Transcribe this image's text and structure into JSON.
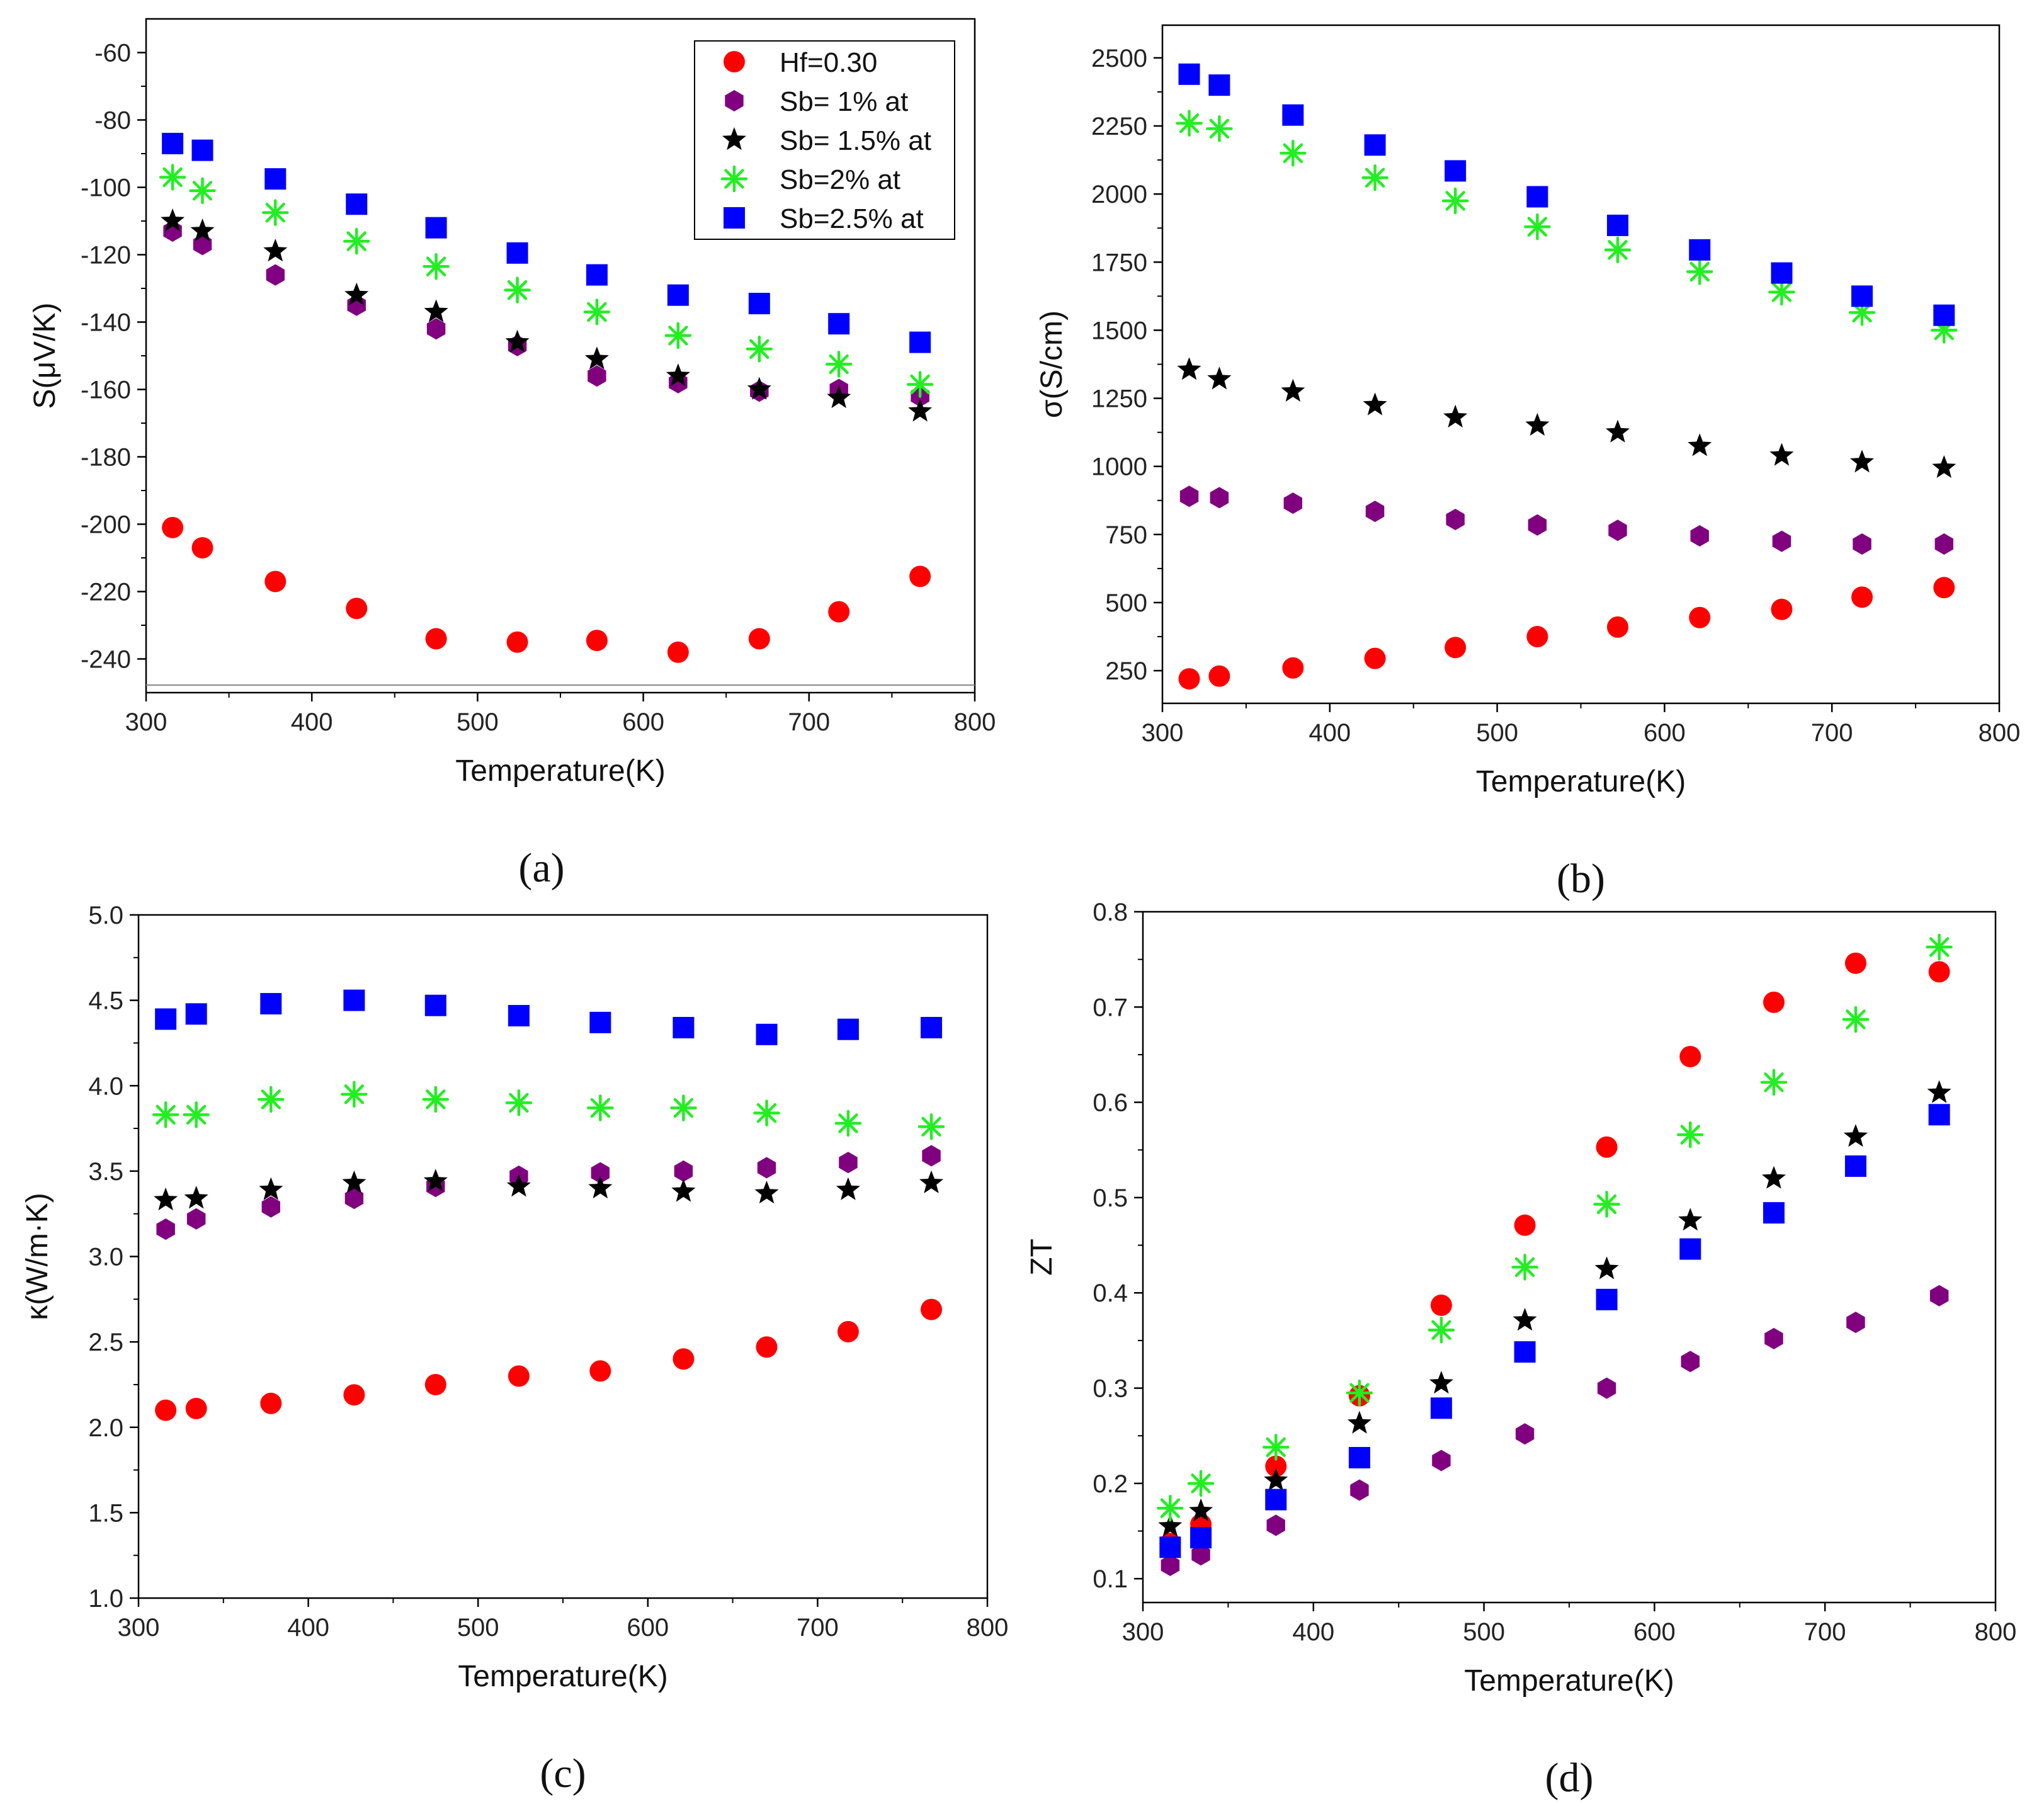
{
  "chart_data": [
    {
      "type": "scatter",
      "panel_label": "(a)",
      "xlabel": "Temperature(K)",
      "ylabel": "S(μV/K)",
      "xlim": [
        300,
        800
      ],
      "ylim": [
        -250,
        -50
      ],
      "xticks": [
        300,
        400,
        500,
        600,
        700,
        800
      ],
      "yticks": [
        -240,
        -220,
        -200,
        -180,
        -160,
        -140,
        -120,
        -100,
        -80,
        -60
      ],
      "legend_position": "top-right",
      "x": [
        316,
        334,
        378,
        427,
        475,
        524,
        572,
        621,
        670,
        718,
        767
      ],
      "series": [
        {
          "name": "Hf=0.30",
          "marker": "circle",
          "color": "#ff0000",
          "values": [
            -201,
            -207,
            -217,
            -225,
            -234,
            -235,
            -234.5,
            -238,
            -234,
            -226,
            -215.5
          ]
        },
        {
          "name": "Sb= 1% at",
          "marker": "hexagon",
          "color": "#800080",
          "values": [
            -113,
            -117,
            -126,
            -135,
            -142,
            -147,
            -156,
            -158,
            -160.5,
            -160,
            -162
          ]
        },
        {
          "name": "Sb= 1.5% at",
          "marker": "star",
          "color": "#000000",
          "values": [
            -110,
            -113,
            -119,
            -132,
            -137,
            -146,
            -151,
            -156,
            -160,
            -162.5,
            -166.5
          ]
        },
        {
          "name": "Sb=2% at",
          "marker": "asterisk",
          "color": "#22ee22",
          "values": [
            -97,
            -101,
            -107.5,
            -116,
            -123.5,
            -130.5,
            -137,
            -144,
            -148,
            -152.5,
            -158.5
          ]
        },
        {
          "name": "Sb=2.5% at",
          "marker": "square",
          "color": "#0000ff",
          "values": [
            -87,
            -89,
            -97.5,
            -105,
            -112,
            -119.5,
            -126,
            -132,
            -134.5,
            -140.5,
            -146
          ]
        }
      ]
    },
    {
      "type": "scatter",
      "panel_label": "(b)",
      "xlabel": "Temperature(K)",
      "ylabel": "σ(S/cm)",
      "xlim": [
        300,
        800
      ],
      "ylim": [
        130,
        2620
      ],
      "xticks": [
        300,
        400,
        500,
        600,
        700,
        800
      ],
      "yticks": [
        250,
        500,
        750,
        1000,
        1250,
        1500,
        1750,
        2000,
        2250,
        2500
      ],
      "x": [
        316,
        334,
        378,
        427,
        475,
        524,
        572,
        621,
        670,
        718,
        767
      ],
      "series": [
        {
          "name": "Hf=0.30",
          "marker": "circle",
          "color": "#ff0000",
          "values": [
            220,
            230,
            260,
            295,
            335,
            375,
            410,
            445,
            475,
            520,
            555
          ]
        },
        {
          "name": "Sb= 1% at",
          "marker": "hexagon",
          "color": "#800080",
          "values": [
            890,
            885,
            865,
            835,
            805,
            785,
            765,
            745,
            725,
            715,
            715
          ]
        },
        {
          "name": "Sb= 1.5% at",
          "marker": "star",
          "color": "#000000",
          "values": [
            1355,
            1320,
            1275,
            1225,
            1180,
            1150,
            1125,
            1075,
            1040,
            1015,
            995
          ]
        },
        {
          "name": "Sb=2% at",
          "marker": "asterisk",
          "color": "#22ee22",
          "values": [
            2260,
            2240,
            2150,
            2060,
            1975,
            1880,
            1795,
            1715,
            1640,
            1565,
            1500
          ]
        },
        {
          "name": "Sb=2.5% at",
          "marker": "square",
          "color": "#0000ff",
          "values": [
            2440,
            2400,
            2290,
            2180,
            2085,
            1990,
            1885,
            1795,
            1710,
            1625,
            1555
          ]
        }
      ]
    },
    {
      "type": "scatter",
      "panel_label": "(c)",
      "xlabel": "Temperature(K)",
      "ylabel": "κ(W/m·K)",
      "xlim": [
        300,
        800
      ],
      "ylim": [
        1.0,
        5.0
      ],
      "xticks": [
        300,
        400,
        500,
        600,
        700,
        800
      ],
      "yticks": [
        1.0,
        1.5,
        2.0,
        2.5,
        3.0,
        3.5,
        4.0,
        4.5,
        5.0
      ],
      "ytick_decimals": 1,
      "x": [
        316,
        334,
        378,
        427,
        475,
        524,
        572,
        621,
        670,
        718,
        767
      ],
      "series": [
        {
          "name": "Hf=0.30",
          "marker": "circle",
          "color": "#ff0000",
          "values": [
            2.1,
            2.11,
            2.14,
            2.19,
            2.25,
            2.3,
            2.33,
            2.4,
            2.47,
            2.56,
            2.69
          ]
        },
        {
          "name": "Sb= 1% at",
          "marker": "hexagon",
          "color": "#800080",
          "values": [
            3.16,
            3.22,
            3.29,
            3.34,
            3.41,
            3.47,
            3.49,
            3.5,
            3.52,
            3.55,
            3.59
          ]
        },
        {
          "name": "Sb= 1.5% at",
          "marker": "star",
          "color": "#000000",
          "values": [
            3.33,
            3.34,
            3.39,
            3.43,
            3.44,
            3.41,
            3.4,
            3.38,
            3.37,
            3.39,
            3.43
          ]
        },
        {
          "name": "Sb=2% at",
          "marker": "asterisk",
          "color": "#22ee22",
          "values": [
            3.83,
            3.83,
            3.92,
            3.95,
            3.92,
            3.9,
            3.87,
            3.87,
            3.84,
            3.78,
            3.76
          ]
        },
        {
          "name": "Sb=2.5% at",
          "marker": "square",
          "color": "#0000ff",
          "values": [
            4.39,
            4.42,
            4.48,
            4.5,
            4.47,
            4.41,
            4.37,
            4.34,
            4.3,
            4.33,
            4.34
          ]
        }
      ]
    },
    {
      "type": "scatter",
      "panel_label": "(d)",
      "xlabel": "Temperature(K)",
      "ylabel": "ZT",
      "xlim": [
        300,
        800
      ],
      "ylim": [
        0.075,
        0.8
      ],
      "xticks": [
        300,
        400,
        500,
        600,
        700,
        800
      ],
      "yticks": [
        0.1,
        0.2,
        0.3,
        0.4,
        0.5,
        0.6,
        0.7,
        0.8
      ],
      "ytick_decimals": 1,
      "x": [
        316,
        334,
        378,
        427,
        475,
        524,
        572,
        621,
        670,
        718,
        767
      ],
      "series": [
        {
          "name": "Hf=0.30",
          "marker": "circle",
          "color": "#ff0000",
          "values": [
            0.137,
            0.157,
            0.218,
            0.292,
            0.387,
            0.471,
            0.553,
            0.648,
            0.705,
            0.746,
            0.737
          ]
        },
        {
          "name": "Sb= 1% at",
          "marker": "hexagon",
          "color": "#800080",
          "values": [
            0.114,
            0.125,
            0.156,
            0.193,
            0.224,
            0.252,
            0.3,
            0.328,
            0.352,
            0.369,
            0.397
          ]
        },
        {
          "name": "Sb= 1.5% at",
          "marker": "star",
          "color": "#000000",
          "values": [
            0.155,
            0.171,
            0.203,
            0.263,
            0.305,
            0.371,
            0.425,
            0.476,
            0.52,
            0.564,
            0.61
          ]
        },
        {
          "name": "Sb=2% at",
          "marker": "asterisk",
          "color": "#22ee22",
          "values": [
            0.174,
            0.2,
            0.238,
            0.295,
            0.361,
            0.427,
            0.493,
            0.566,
            0.621,
            0.687,
            0.763
          ]
        },
        {
          "name": "Sb=2.5% at",
          "marker": "square",
          "color": "#0000ff",
          "values": [
            0.133,
            0.143,
            0.183,
            0.227,
            0.279,
            0.338,
            0.393,
            0.446,
            0.484,
            0.533,
            0.587
          ]
        }
      ]
    }
  ]
}
